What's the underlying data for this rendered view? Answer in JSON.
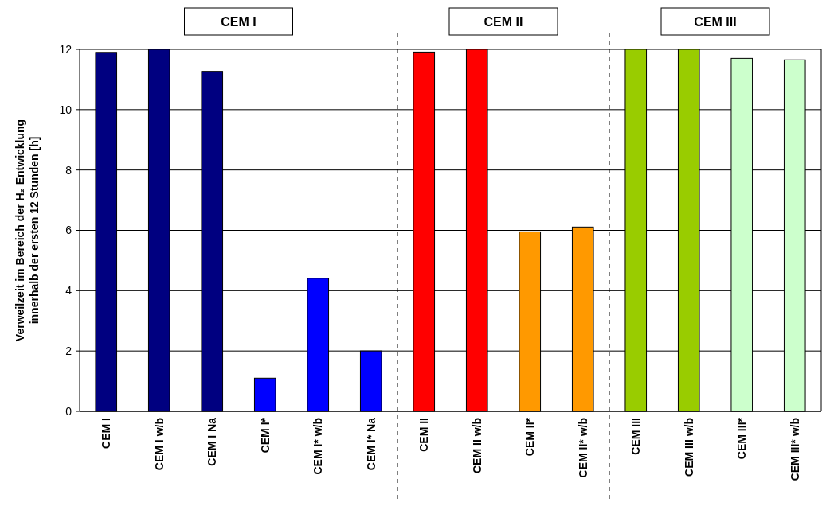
{
  "chart_data": {
    "type": "bar",
    "ylabel": "Verweilzeit im Bereich der H₂ Entwicklung\ninnerhalb der ersten 12 Stunden [h]",
    "categories": [
      "CEM I",
      "CEM I w/b",
      "CEM I Na",
      "CEM I*",
      "CEM I* w/b",
      "CEM I* Na",
      "CEM II",
      "CEM II w/b",
      "CEM II*",
      "CEM II* w/b",
      "CEM III",
      "CEM III w/b",
      "CEM III*",
      "CEM III* w/b"
    ],
    "values": [
      11.9,
      12,
      11.27,
      1.1,
      4.41,
      2.0,
      11.91,
      12,
      5.95,
      6.11,
      12,
      12,
      11.7,
      11.65
    ],
    "colors": [
      "#000080",
      "#000080",
      "#000080",
      "#0000ff",
      "#0000ff",
      "#0000ff",
      "#ff0000",
      "#ff0000",
      "#ff9900",
      "#ff9900",
      "#99cc00",
      "#99cc00",
      "#ccffcc",
      "#ccffcc"
    ],
    "ylim": [
      0,
      12
    ],
    "yticks": [
      0,
      2,
      4,
      6,
      8,
      10,
      12
    ],
    "grid": "y",
    "annotations": [
      "CEM I",
      "CEM II",
      "CEM III"
    ]
  }
}
